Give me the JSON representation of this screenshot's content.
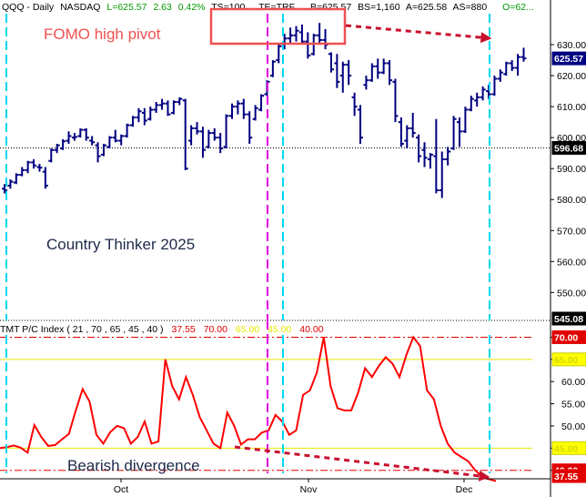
{
  "header": {
    "symbol": "QQQ - Daily",
    "exchange": "NASDAQ",
    "last": "L=625.57",
    "change": "2.63",
    "change_pct": "0.42%",
    "ts": "TS=100",
    "te": "TE=TRF",
    "bid": "B=625.57",
    "bid_size": "BS=1,160",
    "ask": "A=625.58",
    "ask_size": "AS=880",
    "open": "O=62..."
  },
  "annotations": {
    "fomo": "FOMO high pivot",
    "watermark": "Country Thinker 2025",
    "divergence": "Bearish divergence"
  },
  "indicator_header": {
    "name": "TMT P/C Index ( 21 , 70 , 65 , 45 , 40 )",
    "current": "37.55",
    "level_70": "70.00",
    "level_65": "65.00",
    "level_45": "45.00",
    "level_40": "40.00"
  },
  "colors": {
    "bars": "#000080",
    "pc_line": "#ff0000",
    "annotation_red": "#f05050",
    "arrow_red": "#c8102e",
    "cyan_marker": "#00d8f0",
    "magenta_marker": "#e000e0",
    "yellow_level": "#e8e800",
    "value_tag": "#e00000"
  },
  "chart_data": [
    {
      "type": "bar",
      "title": "QQQ - Daily",
      "ylim": [
        541,
        640
      ],
      "y_ticks": [
        550,
        560,
        570,
        580,
        590,
        600,
        610,
        620,
        630
      ],
      "x_ticks": [
        "Oct",
        "Nov",
        "Dec"
      ],
      "price_tags": {
        "last": 625.57,
        "reference": 596.68,
        "bottom": 545.08
      },
      "reference_line": 596.68,
      "ohlc": [
        [
          583.5,
          585.0,
          582.0,
          583.0
        ],
        [
          584.5,
          586.5,
          583.5,
          585.8
        ],
        [
          585.5,
          588.5,
          585.0,
          588.0
        ],
        [
          588.0,
          590.5,
          587.5,
          589.5
        ],
        [
          589.5,
          592.5,
          588.5,
          592.0
        ],
        [
          592.0,
          593.0,
          590.0,
          591.0
        ],
        [
          590.5,
          591.5,
          589.0,
          590.3
        ],
        [
          589.0,
          590.5,
          583.5,
          584.5
        ],
        [
          592.5,
          596.5,
          592.0,
          596.0
        ],
        [
          596.0,
          598.0,
          595.0,
          597.5
        ],
        [
          596.5,
          599.5,
          596.0,
          598.8
        ],
        [
          599.0,
          602.0,
          598.0,
          600.5
        ],
        [
          600.0,
          601.5,
          599.0,
          600.2
        ],
        [
          600.5,
          603.0,
          600.0,
          602.5
        ],
        [
          602.5,
          603.0,
          599.0,
          600.0
        ],
        [
          599.0,
          600.5,
          597.5,
          598.5
        ],
        [
          597.5,
          598.5,
          592.0,
          594.0
        ],
        [
          594.5,
          598.0,
          594.0,
          597.5
        ],
        [
          597.0,
          600.5,
          596.5,
          600.0
        ],
        [
          600.0,
          602.5,
          598.5,
          599.0
        ],
        [
          599.0,
          601.0,
          597.5,
          600.5
        ],
        [
          600.5,
          604.5,
          600.0,
          604.0
        ],
        [
          604.0,
          607.0,
          603.5,
          606.5
        ],
        [
          606.5,
          609.5,
          605.0,
          608.5
        ],
        [
          608.0,
          609.5,
          604.0,
          605.5
        ],
        [
          606.0,
          610.0,
          605.5,
          609.0
        ],
        [
          609.0,
          611.5,
          608.0,
          610.5
        ],
        [
          610.5,
          612.5,
          609.0,
          611.0
        ],
        [
          611.0,
          612.0,
          607.0,
          607.5
        ],
        [
          608.0,
          612.0,
          607.5,
          611.5
        ],
        [
          611.5,
          613.0,
          610.5,
          612.5
        ],
        [
          612.0,
          612.5,
          589.5,
          590.0
        ],
        [
          599.0,
          604.0,
          597.5,
          603.0
        ],
        [
          603.0,
          605.0,
          601.0,
          602.0
        ],
        [
          602.0,
          603.5,
          593.5,
          596.0
        ],
        [
          597.0,
          602.5,
          596.5,
          601.5
        ],
        [
          601.5,
          603.0,
          599.0,
          600.0
        ],
        [
          600.0,
          601.5,
          595.0,
          596.5
        ],
        [
          597.0,
          607.5,
          596.5,
          607.0
        ],
        [
          607.0,
          611.0,
          606.0,
          610.0
        ],
        [
          610.0,
          612.0,
          607.5,
          611.0
        ],
        [
          611.0,
          612.5,
          606.0,
          607.5
        ],
        [
          607.5,
          608.5,
          598.0,
          600.0
        ],
        [
          606.0,
          610.5,
          605.5,
          609.5
        ],
        [
          609.0,
          614.0,
          608.5,
          613.5
        ],
        [
          614.0,
          618.5,
          613.5,
          618.0
        ],
        [
          620.0,
          625.0,
          619.5,
          624.5
        ],
        [
          625.0,
          630.0,
          624.0,
          629.5
        ],
        [
          629.5,
          633.5,
          628.5,
          632.0
        ],
        [
          632.0,
          635.5,
          630.0,
          633.0
        ],
        [
          633.0,
          636.0,
          631.0,
          634.5
        ],
        [
          634.0,
          636.5,
          630.0,
          631.0
        ],
        [
          631.0,
          634.0,
          625.5,
          626.5
        ],
        [
          627.0,
          633.5,
          626.5,
          633.0
        ],
        [
          633.0,
          637.0,
          630.5,
          631.5
        ],
        [
          631.5,
          635.0,
          628.5,
          630.0
        ],
        [
          627.0,
          627.5,
          621.0,
          622.0
        ],
        [
          624.0,
          627.0,
          616.0,
          618.0
        ],
        [
          620.0,
          624.5,
          614.5,
          623.5
        ],
        [
          623.5,
          625.0,
          617.0,
          620.0
        ],
        [
          613.0,
          614.5,
          607.0,
          610.0
        ],
        [
          609.0,
          610.5,
          598.0,
          600.0
        ],
        [
          617.0,
          620.0,
          615.5,
          618.5
        ],
        [
          618.5,
          624.0,
          618.0,
          623.0
        ],
        [
          623.0,
          625.5,
          619.0,
          621.0
        ],
        [
          621.0,
          625.5,
          620.5,
          624.0
        ],
        [
          624.0,
          625.0,
          617.0,
          618.5
        ],
        [
          618.0,
          619.0,
          605.0,
          607.0
        ],
        [
          605.0,
          606.5,
          597.0,
          598.0
        ],
        [
          599.0,
          604.0,
          596.5,
          603.0
        ],
        [
          603.0,
          608.0,
          600.0,
          601.5
        ],
        [
          600.0,
          601.0,
          592.0,
          594.0
        ],
        [
          596.0,
          598.5,
          590.5,
          593.5
        ],
        [
          593.0,
          595.0,
          590.0,
          594.5
        ],
        [
          594.0,
          606.0,
          582.0,
          583.0
        ],
        [
          583.0,
          595.5,
          580.5,
          593.0
        ],
        [
          593.0,
          597.0,
          591.0,
          595.5
        ],
        [
          596.5,
          607.0,
          596.0,
          606.0
        ],
        [
          605.0,
          606.5,
          597.0,
          602.0
        ],
        [
          602.0,
          610.0,
          601.5,
          609.0
        ],
        [
          609.0,
          613.5,
          608.5,
          612.5
        ],
        [
          612.0,
          614.5,
          610.0,
          613.0
        ],
        [
          613.0,
          616.5,
          612.0,
          615.5
        ],
        [
          615.0,
          617.0,
          612.5,
          614.0
        ],
        [
          614.0,
          620.0,
          613.5,
          619.0
        ],
        [
          619.0,
          622.0,
          618.0,
          621.0
        ],
        [
          620.5,
          624.5,
          620.0,
          624.0
        ],
        [
          624.0,
          625.0,
          621.5,
          622.5
        ],
        [
          622.5,
          627.0,
          620.0,
          626.0
        ],
        [
          626.0,
          629.0,
          624.5,
          625.57
        ]
      ]
    },
    {
      "type": "line",
      "title": "TMT P/C Index ( 21 , 70 , 65 , 45 , 40 )",
      "ylim": [
        38.5,
        70.5
      ],
      "y_ticks": [
        40,
        45,
        50,
        55,
        60,
        65,
        70
      ],
      "levels": [
        70,
        65,
        45,
        40
      ],
      "current": 37.55,
      "values": [
        45,
        45.2,
        45.6,
        45.1,
        44.0,
        50.2,
        47.5,
        45.5,
        45.7,
        47.0,
        48.2,
        53.5,
        58.3,
        55.5,
        48.0,
        46.0,
        48.6,
        50.0,
        49.5,
        46.0,
        47.5,
        51.0,
        46.0,
        46.5,
        65.0,
        59.0,
        56.0,
        61.0,
        57.0,
        52.0,
        49.0,
        46.0,
        45.0,
        53.0,
        50.0,
        45.8,
        47.0,
        47.0,
        48.5,
        49.0,
        52.5,
        51.0,
        48.0,
        49.0,
        57.0,
        58.0,
        62.0,
        70.0,
        59.0,
        54.0,
        53.5,
        53.5,
        57.5,
        63.0,
        61.0,
        63.5,
        65.5,
        64.0,
        61.0,
        66.0,
        70.0,
        68.0,
        58.0,
        56.0,
        50.0,
        46.0,
        44.0,
        43.0,
        42.0,
        40.0,
        38.5,
        38.0,
        37.55
      ]
    }
  ]
}
